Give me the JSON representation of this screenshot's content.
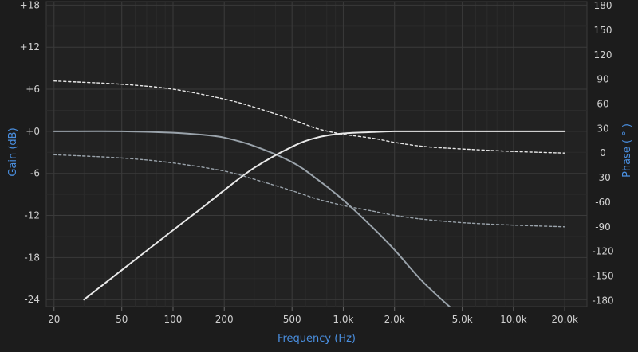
{
  "chart_data": {
    "type": "line",
    "title": "",
    "xlabel": "Frequency (Hz)",
    "ylabel_left": "Gain (dB)",
    "ylabel_right": "Phase ( ° )",
    "x_scale": "log",
    "xlim": [
      18,
      27000
    ],
    "ylim_left": [
      -25,
      18.5
    ],
    "ylim_right": [
      -187.5,
      185
    ],
    "grid": true,
    "x_ticks": [
      20,
      50,
      100,
      200,
      500,
      1000,
      2000,
      5000,
      10000,
      20000
    ],
    "x_tick_labels": [
      "20",
      "50",
      "100",
      "200",
      "500",
      "1.0k",
      "2.0k",
      "5.0k",
      "10.0k",
      "20.0k"
    ],
    "y_left_ticks": [
      18,
      12,
      6,
      0,
      -6,
      -12,
      -18,
      -24
    ],
    "y_left_tick_labels": [
      "+18",
      "+12",
      "+6",
      "+0",
      "-6",
      "-12",
      "-18",
      "-24"
    ],
    "y_right_ticks": [
      180,
      150,
      120,
      90,
      60,
      30,
      0,
      -30,
      -60,
      -90,
      -120,
      -150,
      -180
    ],
    "y_right_tick_labels": [
      "180",
      "150",
      "120",
      "90",
      "60",
      "30",
      "0",
      "-30",
      "-60",
      "-90",
      "-120",
      "-150",
      "-180"
    ],
    "series": [
      {
        "axis": "left",
        "style": "solid",
        "color": "#9aa3ab",
        "x": [
          20,
          50,
          100,
          150,
          200,
          300,
          500,
          700,
          1000,
          1500,
          2000,
          3000,
          5000,
          8000
        ],
        "values": [
          0,
          0,
          -0.2,
          -0.5,
          -0.9,
          -2.1,
          -4.4,
          -6.8,
          -9.8,
          -13.8,
          -16.9,
          -21.7,
          -26.6,
          -30.8
        ]
      },
      {
        "axis": "left",
        "style": "solid",
        "color": "#e8e8e8",
        "x": [
          30,
          50,
          100,
          150,
          200,
          300,
          500,
          700,
          1000,
          1500,
          2000,
          3000,
          5000,
          10000,
          20000
        ],
        "values": [
          -24,
          -19.8,
          -14.1,
          -10.8,
          -8.4,
          -5.2,
          -2.2,
          -0.9,
          -0.3,
          -0.1,
          0,
          0,
          0,
          0,
          0
        ]
      },
      {
        "axis": "right",
        "style": "dashed",
        "color": "#e8e8e8",
        "x": [
          20,
          50,
          100,
          200,
          300,
          500,
          700,
          1000,
          1500,
          2000,
          3000,
          5000,
          10000,
          20000
        ],
        "values": [
          88,
          84,
          78,
          66,
          56,
          41,
          30,
          23,
          18,
          13,
          8,
          5,
          2,
          0
        ]
      },
      {
        "axis": "right",
        "style": "dashed",
        "color": "#9aa3ab",
        "x": [
          20,
          50,
          100,
          200,
          300,
          500,
          700,
          1000,
          1500,
          2000,
          3000,
          5000,
          10000,
          20000
        ],
        "values": [
          -2,
          -6,
          -12,
          -22,
          -32,
          -46,
          -56,
          -64,
          -71,
          -76,
          -81,
          -85,
          -88,
          -90
        ]
      }
    ]
  }
}
